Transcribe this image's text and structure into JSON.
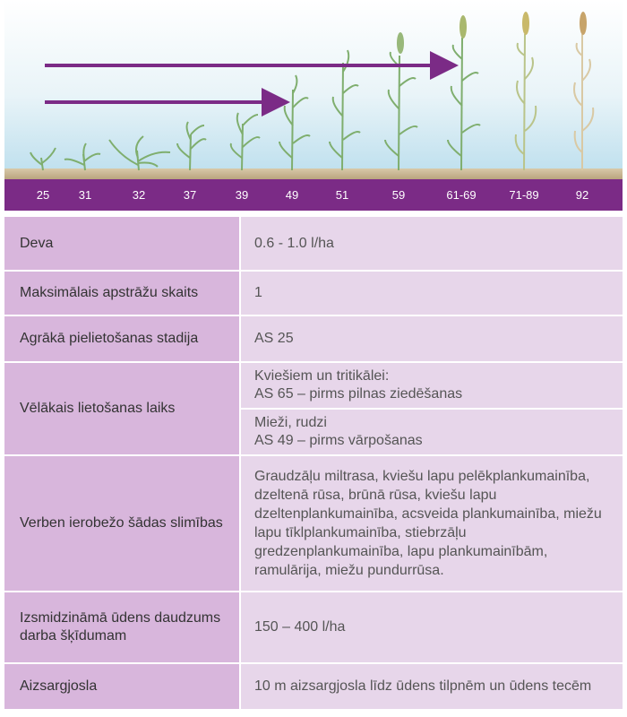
{
  "stages": [
    "25",
    "31",
    "32",
    "37",
    "39",
    "49",
    "51",
    "59",
    "61-69",
    "71-89",
    "92"
  ],
  "colors": {
    "band": "#7b2b86",
    "arrow": "#7b2b86",
    "label_cell": "#d8b6dc",
    "value_cell": "#e7d6ea"
  },
  "rows": {
    "deva": {
      "label": "Deva",
      "value": "0.6 - 1.0 l/ha"
    },
    "max": {
      "label": "Maksimālais apstrāžu skaits",
      "value": "1"
    },
    "earliest": {
      "label": "Agrākā pielietošanas stadija",
      "value": "AS 25"
    },
    "latest": {
      "label": "Vēlākais lietošanas laiks",
      "value_a": "Kviešiem un tritikālei:\nAS 65 – pirms pilnas ziedēšanas",
      "value_b": "Mieži, rudzi\nAS 49 – pirms vārpošanas"
    },
    "diseases": {
      "label": "Verben ierobežo šādas slimības",
      "value": "Graudzāļu miltrasa, kviešu lapu pelēkplankumainība, dzeltenā rūsa, brūnā rūsa, kviešu lapu dzeltenplankumainība, acsveida plankumainība, miežu lapu tīklplankumainība, stiebrzāļu gredzenplankumainība, lapu plankumainībām, ramulārija, miežu pundurrūsa."
    },
    "water": {
      "label": "Izsmidzināmā ūdens daudzums darba šķīdumam",
      "value": "150 – 400 l/ha"
    },
    "buffer": {
      "label": "Aizsargjosla",
      "value": "10 m aizsargjosla līdz ūdens tilpnēm un ūdens tecēm"
    }
  }
}
